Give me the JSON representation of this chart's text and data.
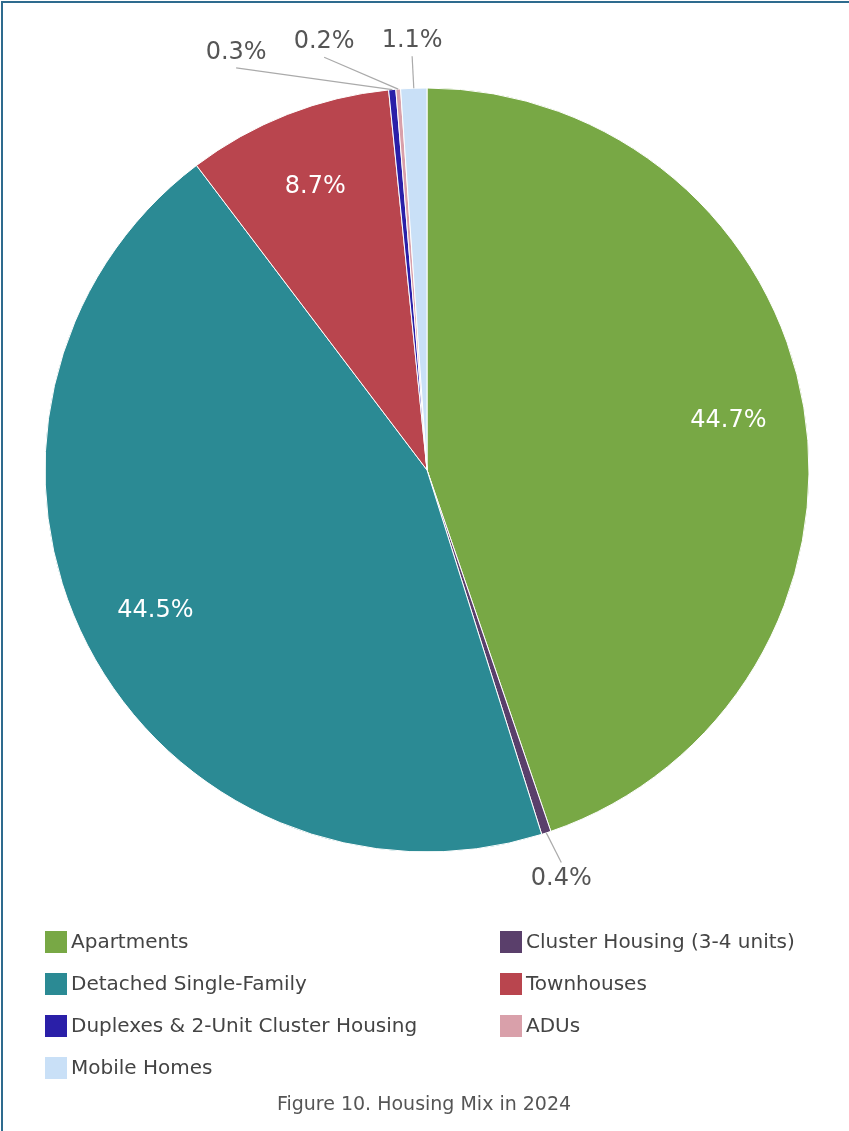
{
  "chart_data": {
    "type": "pie",
    "title": "Figure 10. Housing Mix in 2024",
    "categories": [
      "Apartments",
      "Cluster Housing (3-4 units)",
      "Detached Single-Family",
      "Townhouses",
      "Duplexes & 2-Unit Cluster Housing",
      "ADUs",
      "Mobile Homes"
    ],
    "values": [
      44.7,
      0.4,
      44.5,
      8.7,
      0.3,
      0.2,
      1.1
    ],
    "colors": [
      "#78a845",
      "#5a3f6b",
      "#2b8a94",
      "#b9454e",
      "#2a1fa8",
      "#d9a0aa",
      "#c9e0f7"
    ],
    "value_labels": [
      "44.7%",
      "0.4%",
      "44.5%",
      "8.7%",
      "0.3%",
      "0.2%",
      "1.1%"
    ],
    "legend": "bottom"
  }
}
